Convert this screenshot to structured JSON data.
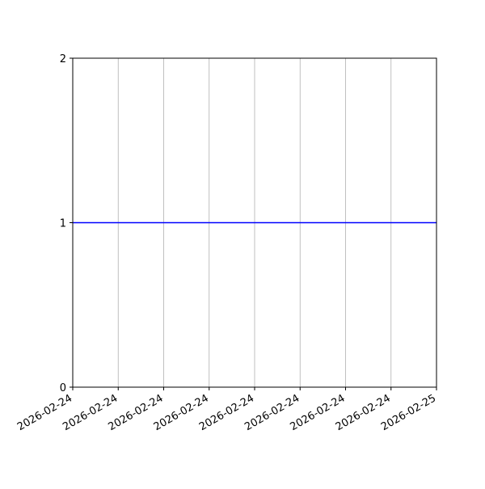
{
  "chart_data": {
    "type": "line",
    "title": "",
    "xlabel": "",
    "ylabel": "",
    "x_is_date": true,
    "xlim": [
      "2026-02-24T00:00",
      "2026-02-25T00:00"
    ],
    "ylim": [
      0,
      2
    ],
    "x_ticks": [
      "2026-02-24T00:00",
      "2026-02-24T03:00",
      "2026-02-24T06:00",
      "2026-02-24T09:00",
      "2026-02-24T12:00",
      "2026-02-24T15:00",
      "2026-02-24T18:00",
      "2026-02-24T21:00",
      "2026-02-25T00:00"
    ],
    "x_tick_labels": [
      "2026-02-24",
      "2026-02-24",
      "2026-02-24",
      "2026-02-24",
      "2026-02-24",
      "2026-02-24",
      "2026-02-24",
      "2026-02-24",
      "2026-02-25"
    ],
    "y_ticks": [
      0,
      1,
      2
    ],
    "y_tick_labels": [
      "0",
      "1",
      "2"
    ],
    "grid": {
      "x": true,
      "y": false,
      "color": "#b0b0b0"
    },
    "series": [
      {
        "x": [
          "2026-02-24T00:00",
          "2026-02-25T00:00"
        ],
        "y": [
          1,
          1
        ],
        "color": "#0000ff"
      }
    ]
  }
}
